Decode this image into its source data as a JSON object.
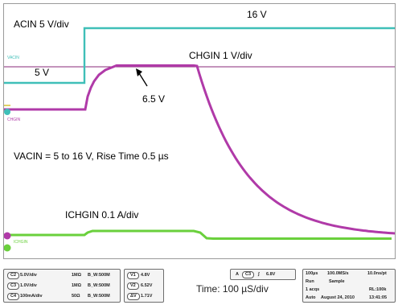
{
  "annotations": {
    "acin_scale": "ACIN 5 V/div",
    "level_16v": "16 V",
    "chgin_scale": "CHGIN 1 V/div",
    "level_5v": "5 V",
    "level_6_5v": "6.5 V",
    "vacin_rise": "VACIN = 5 to 16 V, Rise Time 0.5 µs",
    "ichgin_scale": "ICHGIN 0.1 A/div"
  },
  "channel_markers": {
    "ch_acin": "VACIN",
    "ch_chgin": "CHGIN",
    "ch_ichgin": "ICHGIN"
  },
  "trace_colors": {
    "acin": "#3fbfb8",
    "chgin": "#b03aa8",
    "ichgin": "#6ad03c",
    "ch1": "#c9b400",
    "ref_line": "#8a2a7a"
  },
  "settings": {
    "channels": [
      {
        "id": "C2",
        "scale": "5.0V/div",
        "coupling": "1MΩ",
        "bw": "B_W:500M"
      },
      {
        "id": "C3",
        "scale": "1.0V/div",
        "coupling": "1MΩ",
        "bw": "B_W:500M"
      },
      {
        "id": "C4",
        "scale": "100mA/div",
        "coupling": "50Ω",
        "bw": "B_W:500M"
      }
    ],
    "cursors": [
      {
        "id": "V1",
        "value": "4.8V"
      },
      {
        "id": "V2",
        "value": "6.52V"
      },
      {
        "id": "ΔV",
        "value": "1.71V"
      }
    ],
    "trigger": {
      "mode": "A",
      "channel": "C3",
      "slope": "∫",
      "level": "6.8V"
    },
    "time_div": "Time:  100 µS/div",
    "acq": {
      "horizontal": "100µs",
      "sample_rate": "100.0MS/s",
      "resolution": "10.0ns/pt",
      "run_state": "Run",
      "acq_mode": "Sample",
      "acqs": "1 acqs",
      "record_length": "RL:100k",
      "trigger_mode": "Auto",
      "date": "August 24, 2010",
      "time": "13:41:05"
    }
  }
}
